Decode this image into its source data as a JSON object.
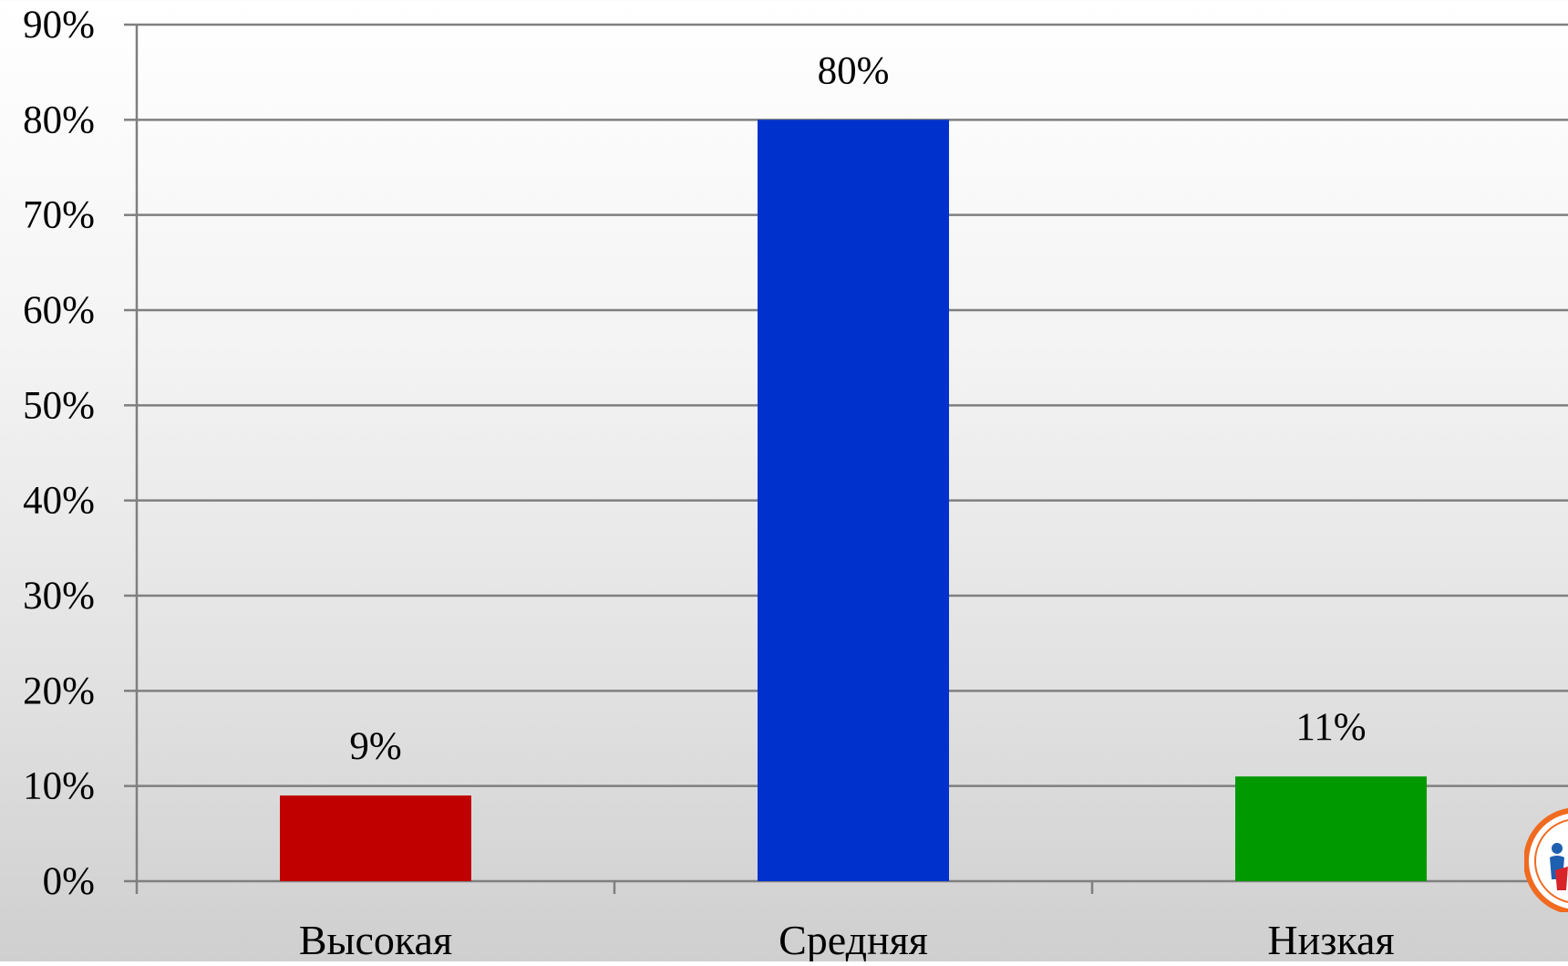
{
  "chart_data": {
    "type": "bar",
    "categories": [
      "Высокая",
      "Средняя",
      "Низкая"
    ],
    "values": [
      9,
      80,
      11
    ],
    "value_labels": [
      "9%",
      "80%",
      "11%"
    ],
    "colors": [
      "#c00000",
      "#0031cc",
      "#009900"
    ],
    "ylim": [
      0,
      90
    ],
    "y_ticks": [
      0,
      10,
      20,
      30,
      40,
      50,
      60,
      70,
      80,
      90
    ],
    "y_tick_labels": [
      "0%",
      "10%",
      "20%",
      "30%",
      "40%",
      "50%",
      "60%",
      "70%",
      "80%",
      "90%"
    ],
    "grid": true,
    "legend": "none"
  }
}
